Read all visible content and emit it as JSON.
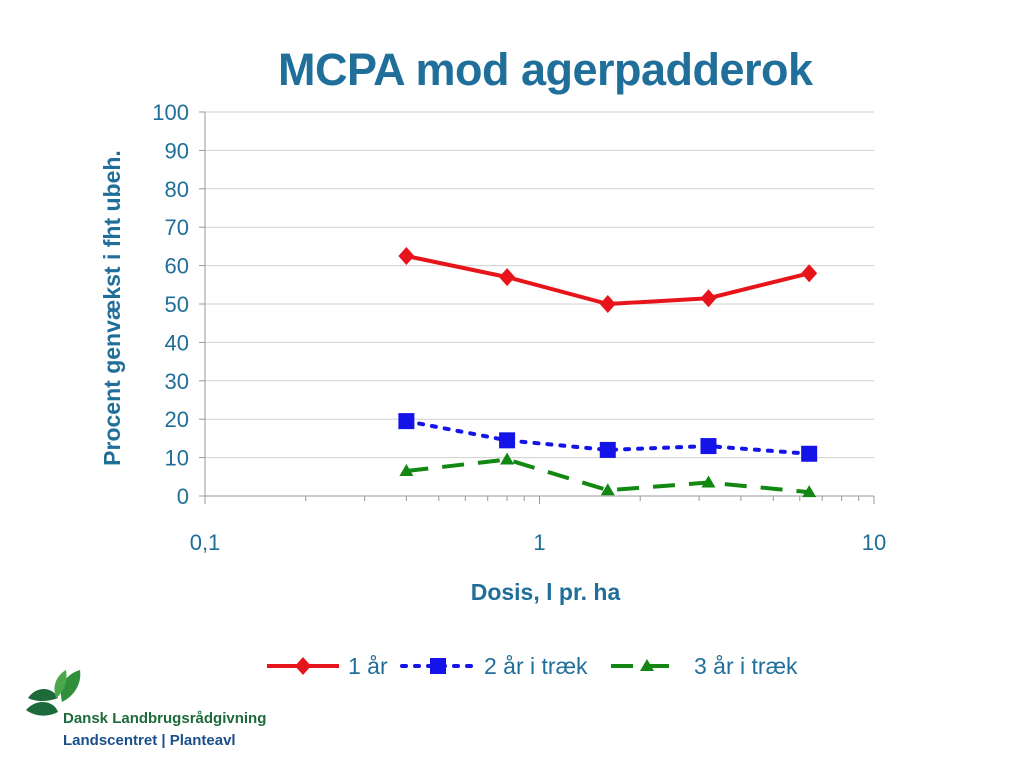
{
  "title": "MCPA mod agerpadderok",
  "chart_data": {
    "type": "line",
    "title": "MCPA mod agerpadderok",
    "xlabel": "Dosis, l pr. ha",
    "ylabel": "Procent genvækst i fht ubeh.",
    "xscale": "log",
    "xlim": [
      0.1,
      10
    ],
    "ylim": [
      0,
      100
    ],
    "x_tick_labels": [
      "0,1",
      "1",
      "10"
    ],
    "y_ticks": [
      0,
      10,
      20,
      30,
      40,
      50,
      60,
      70,
      80,
      90,
      100
    ],
    "grid": "horizontal",
    "legend_position": "bottom",
    "x": [
      0.4,
      0.8,
      1.6,
      3.2,
      6.4
    ],
    "series": [
      {
        "name": "1 år",
        "values": [
          62.5,
          57,
          50,
          51.5,
          58
        ],
        "color": "#e8141b",
        "marker": "diamond",
        "line": "solid"
      },
      {
        "name": "2 år i træk",
        "values": [
          19.5,
          14.5,
          12,
          13,
          11
        ],
        "color": "#1414e8",
        "marker": "square",
        "line": "dotted"
      },
      {
        "name": "3 år i træk",
        "values": [
          6.5,
          9.5,
          1.5,
          3.5,
          1
        ],
        "color": "#128712",
        "marker": "triangle",
        "line": "dashed"
      }
    ]
  },
  "logo": {
    "line1_a": "Dansk Landbrugs",
    "line1_b": "rådgivning",
    "line2": "Landscentret | Planteavl",
    "icon": "leaf-logo-icon"
  }
}
